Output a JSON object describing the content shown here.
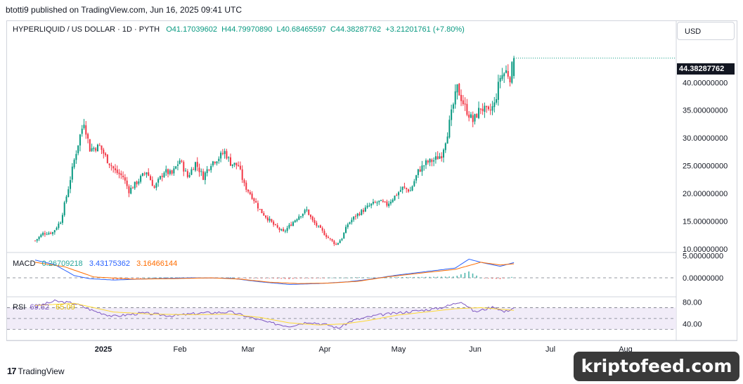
{
  "header": {
    "published": "btotti9 published on TradingView.com, Jun 16, 2025 09:41 UTC"
  },
  "legend": {
    "symbol": "HYPERLIQUID / US DOLLAR · 1D · PYTH",
    "open": "O41.17039602",
    "high": "H44.79970890",
    "low": "L40.68465597",
    "close": "C44.38287762",
    "change": "+3.21201761 (+7.80%)"
  },
  "currency": "USD",
  "last_price": "44.38287762",
  "colors": {
    "up": "#089981",
    "down": "#f23645",
    "macd": "#2962ff",
    "signal": "#ff6d00",
    "rsi": "#7e57c2",
    "rsi_ma": "#fdd835"
  },
  "macd_legend": {
    "name": "MACD",
    "hist": "0.26709218",
    "macd": "3.43175362",
    "signal": "3.16466144"
  },
  "rsi_legend": {
    "name": "RSI",
    "rsi": "69.62",
    "ma": "65.09"
  },
  "footer": {
    "brand": "TradingView",
    "watermark": "kriptofeed.com"
  },
  "chart_data": {
    "type": "candlestick",
    "price_axis": {
      "range": [
        9.5,
        47
      ],
      "ticks": [
        10,
        15,
        20,
        25,
        30,
        35,
        40
      ],
      "tick_labels": [
        "10.00000000",
        "15.00000000",
        "20.00000000",
        "25.00000000",
        "30.00000000",
        "35.00000000",
        "40.00000000"
      ]
    },
    "macd_axis": {
      "ticks": [
        0,
        5
      ],
      "tick_labels": [
        "0.00000000",
        "5.00000000"
      ]
    },
    "rsi_axis": {
      "range": [
        20,
        90
      ],
      "ticks": [
        40,
        80
      ],
      "tick_labels": [
        "40.00",
        "80.00"
      ],
      "bands": [
        30,
        50,
        70
      ]
    },
    "time_axis": {
      "labels": [
        "2025",
        "Feb",
        "Mar",
        "Apr",
        "May",
        "Jun",
        "Jul",
        "Aug"
      ]
    },
    "close_path": [
      [
        0,
        11.5
      ],
      [
        4,
        12.8
      ],
      [
        9,
        13.0
      ],
      [
        13,
        15.0
      ],
      [
        17,
        21.0
      ],
      [
        20,
        26.0
      ],
      [
        23,
        30.5
      ],
      [
        25,
        33.0
      ],
      [
        28,
        28.0
      ],
      [
        33,
        28.5
      ],
      [
        37,
        26.0
      ],
      [
        41,
        24.0
      ],
      [
        45,
        23.0
      ],
      [
        48,
        20.5
      ],
      [
        52,
        22.0
      ],
      [
        57,
        24.0
      ],
      [
        61,
        21.0
      ],
      [
        66,
        24.0
      ],
      [
        70,
        23.5
      ],
      [
        74,
        26.0
      ],
      [
        78,
        23.0
      ],
      [
        82,
        25.5
      ],
      [
        86,
        23.0
      ],
      [
        90,
        25.5
      ],
      [
        94,
        26.5
      ],
      [
        97,
        27.5
      ],
      [
        100,
        25.5
      ],
      [
        104,
        25.0
      ],
      [
        107,
        21.5
      ],
      [
        111,
        19.5
      ],
      [
        115,
        17.0
      ],
      [
        119,
        15.5
      ],
      [
        123,
        14.0
      ],
      [
        127,
        13.0
      ],
      [
        131,
        14.5
      ],
      [
        135,
        16.0
      ],
      [
        139,
        17.0
      ],
      [
        142,
        15.0
      ],
      [
        146,
        13.5
      ],
      [
        150,
        12.0
      ],
      [
        154,
        10.8
      ],
      [
        157,
        12.0
      ],
      [
        160,
        14.5
      ],
      [
        164,
        16.0
      ],
      [
        168,
        17.0
      ],
      [
        172,
        18.0
      ],
      [
        176,
        18.5
      ],
      [
        180,
        18.0
      ],
      [
        184,
        19.5
      ],
      [
        188,
        21.0
      ],
      [
        192,
        20.5
      ],
      [
        196,
        24.0
      ],
      [
        200,
        25.5
      ],
      [
        204,
        26.0
      ],
      [
        208,
        27.0
      ],
      [
        211,
        31.0
      ],
      [
        214,
        36.0
      ],
      [
        216,
        39.0
      ],
      [
        220,
        35.5
      ],
      [
        224,
        33.0
      ],
      [
        228,
        35.5
      ],
      [
        232,
        34.5
      ],
      [
        235,
        36.0
      ],
      [
        238,
        41.0
      ],
      [
        241,
        42.0
      ],
      [
        243,
        41.0
      ],
      [
        245,
        44.38
      ]
    ],
    "macd_path": [
      [
        0,
        4.0
      ],
      [
        10,
        3.0
      ],
      [
        20,
        0.5
      ],
      [
        28,
        -0.2
      ],
      [
        40,
        -0.5
      ],
      [
        60,
        -0.2
      ],
      [
        80,
        0.0
      ],
      [
        100,
        -0.1
      ],
      [
        115,
        -0.9
      ],
      [
        130,
        -1.5
      ],
      [
        145,
        -1.3
      ],
      [
        160,
        -0.9
      ],
      [
        170,
        -0.4
      ],
      [
        185,
        0.6
      ],
      [
        200,
        1.4
      ],
      [
        215,
        2.2
      ],
      [
        222,
        4.2
      ],
      [
        230,
        3.3
      ],
      [
        238,
        2.6
      ],
      [
        245,
        3.43
      ]
    ],
    "signal_path": [
      [
        0,
        3.5
      ],
      [
        15,
        2.5
      ],
      [
        30,
        0.2
      ],
      [
        50,
        -0.3
      ],
      [
        70,
        -0.2
      ],
      [
        90,
        0.0
      ],
      [
        105,
        -0.3
      ],
      [
        120,
        -1.0
      ],
      [
        135,
        -1.3
      ],
      [
        150,
        -1.2
      ],
      [
        165,
        -0.8
      ],
      [
        180,
        0.2
      ],
      [
        200,
        1.2
      ],
      [
        215,
        1.9
      ],
      [
        228,
        3.5
      ],
      [
        238,
        2.9
      ],
      [
        245,
        3.16
      ]
    ],
    "rsi_path": [
      [
        0,
        72
      ],
      [
        10,
        82
      ],
      [
        20,
        78
      ],
      [
        30,
        64
      ],
      [
        40,
        54
      ],
      [
        55,
        60
      ],
      [
        70,
        55
      ],
      [
        85,
        60
      ],
      [
        100,
        62
      ],
      [
        110,
        52
      ],
      [
        120,
        42
      ],
      [
        130,
        36
      ],
      [
        140,
        44
      ],
      [
        150,
        38
      ],
      [
        155,
        32
      ],
      [
        162,
        46
      ],
      [
        175,
        56
      ],
      [
        185,
        60
      ],
      [
        195,
        64
      ],
      [
        205,
        68
      ],
      [
        212,
        74
      ],
      [
        218,
        82
      ],
      [
        225,
        62
      ],
      [
        235,
        72
      ],
      [
        240,
        62
      ],
      [
        245,
        69.62
      ]
    ],
    "rsi_ma_path": [
      [
        0,
        74
      ],
      [
        20,
        78
      ],
      [
        40,
        62
      ],
      [
        60,
        58
      ],
      [
        80,
        57
      ],
      [
        100,
        58
      ],
      [
        115,
        52
      ],
      [
        130,
        42
      ],
      [
        145,
        38
      ],
      [
        158,
        40
      ],
      [
        170,
        46
      ],
      [
        185,
        56
      ],
      [
        200,
        62
      ],
      [
        215,
        68
      ],
      [
        228,
        70
      ],
      [
        245,
        65.09
      ]
    ]
  }
}
